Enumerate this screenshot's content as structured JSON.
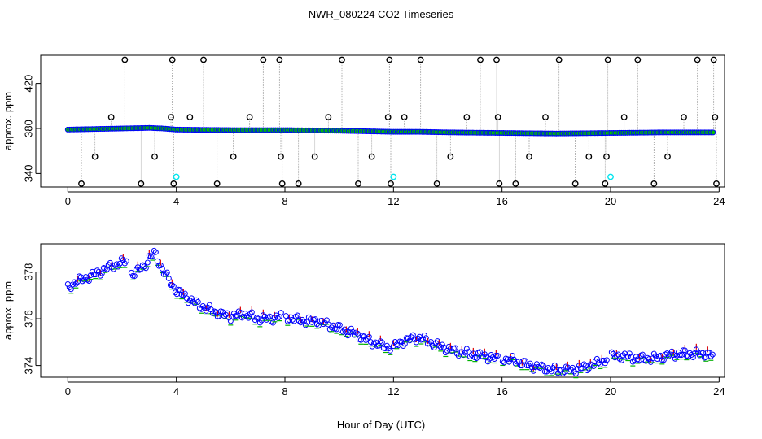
{
  "figure": {
    "title": "NWR_080224  CO2 Timeseries",
    "xlabel": "Hour of Day (UTC)"
  },
  "chart_data": [
    {
      "type": "scatter",
      "title": "NWR_080224  CO2 Timeseries",
      "xlabel": "",
      "ylabel": "approx. ppm",
      "xlim": [
        -1,
        24.2
      ],
      "ylim": [
        328,
        445
      ],
      "xticks": [
        0,
        4,
        8,
        12,
        16,
        20,
        24
      ],
      "yticks": [
        340,
        380,
        420
      ],
      "grid": false,
      "baseline_profile": {
        "x": [
          0,
          1,
          2,
          3,
          3.5,
          4,
          6,
          8,
          10,
          12,
          13,
          14,
          16,
          18,
          20,
          22,
          24
        ],
        "y": [
          379,
          379.5,
          380,
          380.5,
          380,
          379,
          378.5,
          378.5,
          378,
          377,
          377,
          376.5,
          376,
          375.5,
          376,
          376.5,
          376.5
        ]
      },
      "spikes": {
        "x": [
          0.5,
          1.0,
          1.6,
          2.1,
          2.7,
          3.2,
          3.8,
          3.85,
          3.9,
          4.5,
          5.0,
          5.5,
          6.1,
          6.7,
          7.2,
          7.8,
          7.85,
          7.9,
          8.5,
          9.1,
          9.6,
          10.1,
          10.7,
          11.2,
          11.8,
          11.85,
          11.9,
          12.4,
          13.0,
          13.6,
          14.1,
          14.7,
          15.2,
          15.8,
          15.85,
          15.9,
          16.5,
          17.0,
          17.6,
          18.1,
          18.7,
          19.2,
          19.8,
          19.85,
          19.9,
          20.5,
          21.0,
          21.6,
          22.1,
          22.7,
          23.2,
          23.8,
          23.85,
          23.9
        ],
        "y": [
          331,
          355,
          390,
          441,
          331,
          355,
          390,
          441,
          331,
          390,
          441,
          331,
          355,
          390,
          441,
          441,
          355,
          331,
          331,
          355,
          390,
          441,
          331,
          355,
          390,
          441,
          331,
          390,
          441,
          331,
          355,
          390,
          441,
          441,
          390,
          331,
          331,
          355,
          390,
          441,
          331,
          355,
          331,
          355,
          441,
          390,
          441,
          331,
          355,
          390,
          441,
          441,
          390,
          331
        ]
      },
      "cyan_points": {
        "x": [
          4.0,
          12.0,
          20.0
        ],
        "y": [
          337,
          337,
          337
        ]
      },
      "series_colors": {
        "points": "#0000ff",
        "spikes": "#000000",
        "cyan": "#00e5ee",
        "fill_green": "#00c000",
        "fill_orange": "#ff8c00",
        "connector": "#999999"
      }
    },
    {
      "type": "scatter",
      "title": "",
      "xlabel": "Hour of Day (UTC)",
      "ylabel": "approx. ppm",
      "xlim": [
        -1,
        24.2
      ],
      "ylim": [
        373.5,
        379.2
      ],
      "xticks": [
        0,
        4,
        8,
        12,
        16,
        20,
        24
      ],
      "yticks": [
        374,
        376,
        378
      ],
      "grid": false,
      "profile": {
        "x": [
          0,
          0.3,
          0.6,
          1.0,
          1.5,
          2.0,
          2.2,
          2.3,
          2.5,
          2.8,
          3.0,
          3.2,
          3.4,
          3.6,
          3.8,
          4.0,
          4.4,
          4.8,
          5.2,
          5.6,
          6.0,
          6.5,
          7.0,
          7.5,
          7.9,
          8.3,
          8.7,
          9.2,
          9.7,
          10.2,
          10.7,
          11.2,
          11.7,
          12.0,
          12.5,
          13.0,
          13.3,
          13.8,
          14.3,
          14.8,
          15.3,
          15.8,
          16.0,
          16.5,
          17.0,
          17.5,
          18.0,
          18.5,
          19.0,
          19.5,
          19.9,
          20.0,
          20.5,
          21.0,
          21.5,
          22.0,
          22.5,
          23.0,
          23.5,
          23.8
        ],
        "y": [
          377.3,
          377.6,
          377.7,
          377.9,
          378.2,
          378.4,
          378.5,
          377.9,
          378.0,
          378.2,
          378.6,
          378.8,
          378.3,
          377.9,
          377.5,
          377.2,
          376.9,
          376.6,
          376.4,
          376.2,
          376.1,
          376.2,
          376.0,
          376.0,
          376.1,
          376.0,
          375.9,
          375.9,
          375.7,
          375.5,
          375.3,
          375.0,
          374.8,
          374.8,
          375.1,
          375.2,
          375.0,
          374.8,
          374.6,
          374.5,
          374.4,
          374.3,
          374.3,
          374.2,
          374.0,
          373.9,
          373.8,
          373.8,
          373.9,
          374.1,
          374.3,
          374.4,
          374.4,
          374.3,
          374.3,
          374.4,
          374.5,
          374.5,
          374.5,
          374.4
        ]
      },
      "gaps_after_x": [
        2.2,
        7.9,
        11.9,
        15.9,
        19.9
      ],
      "series_colors": {
        "points": "#0000ff",
        "green": "#00b000",
        "red": "#dd0000"
      }
    }
  ]
}
